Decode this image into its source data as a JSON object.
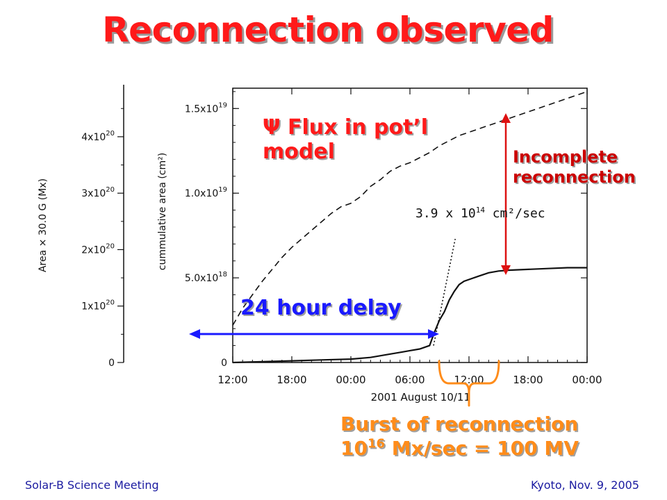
{
  "slide": {
    "title": "Reconnection observed",
    "footer_left": "Solar-B Science Meeting",
    "footer_right": "Kyoto, Nov. 9, 2005"
  },
  "annotations": {
    "flux_psi": "Ψ",
    "flux_text": "Flux in pot’l model",
    "incomplete": [
      "Incomplete",
      "reconnection"
    ],
    "delay": "24 hour delay",
    "burst_line1": "Burst of reconnection",
    "burst_line2_base": "10",
    "burst_line2_exp": "16",
    "burst_line2_rest": " Mx/sec = 100 MV",
    "rate_base": "3.9 x 10",
    "rate_exp": "14",
    "rate_unit": " cm²/sec"
  },
  "colors": {
    "title": "#ff1a1a",
    "flux_text": "#ff1a1a",
    "incomplete_arrow": "#dd1111",
    "delay_arrow": "#1a1aff",
    "burst": "#ff8c1a",
    "footer": "#1a1aa0"
  },
  "chart_data": {
    "type": "line",
    "xlabel": "2001 August 10/11",
    "ylabel": "cummulative area (cm²)",
    "ylabel_outer": "Area × 30.0 G (Mx)",
    "x_unit": "hours since 2001 August 10 12:00",
    "xlim": [
      0,
      36
    ],
    "ylim": [
      0,
      1.62e+19
    ],
    "x_ticks": [
      {
        "value": 0,
        "label": "12:00"
      },
      {
        "value": 6,
        "label": "18:00"
      },
      {
        "value": 12,
        "label": "00:00"
      },
      {
        "value": 18,
        "label": "06:00"
      },
      {
        "value": 24,
        "label": "12:00"
      },
      {
        "value": 30,
        "label": "18:00"
      },
      {
        "value": 36,
        "label": "00:00"
      }
    ],
    "y_ticks": [
      {
        "value": 0,
        "base": "0",
        "exp": ""
      },
      {
        "value": 5e+18,
        "base": "5.0x10",
        "exp": "18"
      },
      {
        "value": 1e+19,
        "base": "1.0x10",
        "exp": "19"
      },
      {
        "value": 1.5e+19,
        "base": "1.5x10",
        "exp": "19"
      }
    ],
    "y2_ticks": [
      {
        "value": 0,
        "base": "0",
        "exp": ""
      },
      {
        "value": 1e+20,
        "base": "1x10",
        "exp": "20"
      },
      {
        "value": 2e+20,
        "base": "2x10",
        "exp": "20"
      },
      {
        "value": 3e+20,
        "base": "3x10",
        "exp": "20"
      },
      {
        "value": 4e+20,
        "base": "4x10",
        "exp": "20"
      }
    ],
    "y2_per_y1": 30.0,
    "series": [
      {
        "style": "dashed",
        "x": [
          0,
          1,
          2,
          3,
          4,
          5,
          6,
          7,
          8,
          9,
          10,
          11,
          12,
          13,
          14,
          15,
          16,
          17,
          18,
          19,
          20,
          21,
          22,
          23,
          24,
          25,
          26,
          27,
          28,
          29,
          30,
          31,
          32,
          33,
          34,
          35,
          36
        ],
        "y": [
          2.2e+18,
          3.2e+18,
          4e+18,
          4.8e+18,
          5.5e+18,
          6.2e+18,
          6.8e+18,
          7.3e+18,
          7.8e+18,
          8.3e+18,
          8.8e+18,
          9.2e+18,
          9.4e+18,
          9.8e+18,
          1.04e+19,
          1.08e+19,
          1.13e+19,
          1.16e+19,
          1.18e+19,
          1.21e+19,
          1.24e+19,
          1.28e+19,
          1.31e+19,
          1.34e+19,
          1.36e+19,
          1.38e+19,
          1.4e+19,
          1.42e+19,
          1.44e+19,
          1.46e+19,
          1.48e+19,
          1.5e+19,
          1.52e+19,
          1.54e+19,
          1.56e+19,
          1.58e+19,
          1.6e+19
        ]
      },
      {
        "style": "solid",
        "x": [
          0,
          3,
          6,
          9,
          12,
          14,
          16,
          17,
          18,
          19,
          20,
          20.5,
          21,
          21.5,
          22,
          22.5,
          23,
          23.5,
          24,
          25,
          26,
          27,
          28,
          30,
          32,
          34,
          36
        ],
        "y": [
          0,
          5e+16,
          1e+17,
          1.5e+17,
          2e+17,
          3e+17,
          5e+17,
          6e+17,
          7e+17,
          8e+17,
          1e+18,
          1.8e+18,
          2.5e+18,
          3e+18,
          3.7e+18,
          4.2e+18,
          4.6e+18,
          4.8e+18,
          4.9e+18,
          5.1e+18,
          5.3e+18,
          5.4e+18,
          5.45e+18,
          5.5e+18,
          5.55e+18,
          5.6e+18,
          5.6e+18
        ]
      },
      {
        "style": "dotted",
        "x": [
          20.4,
          22.6
        ],
        "y": [
          1e+18,
          7.3e+18
        ]
      }
    ]
  }
}
